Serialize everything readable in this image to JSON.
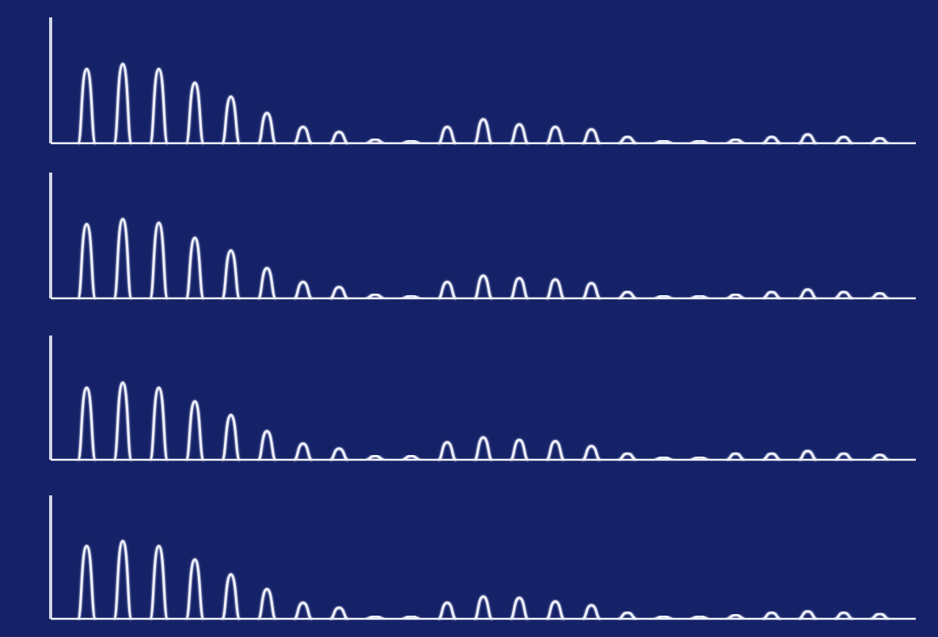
{
  "colors": {
    "background": "#152268",
    "screen_edge": "#0d1648",
    "trace": "#eef0fb",
    "axis": "#f4f5fd"
  },
  "chart_data": [
    {
      "type": "line",
      "xlim": [
        0,
        24
      ],
      "ylim": [
        0,
        100
      ],
      "grid": false,
      "peaks": [
        {
          "x": 1,
          "y": 59
        },
        {
          "x": 2,
          "y": 63
        },
        {
          "x": 3,
          "y": 59
        },
        {
          "x": 4,
          "y": 48
        },
        {
          "x": 5,
          "y": 37
        },
        {
          "x": 6,
          "y": 24
        },
        {
          "x": 7,
          "y": 13
        },
        {
          "x": 8,
          "y": 9
        },
        {
          "x": 9,
          "y": 3
        },
        {
          "x": 10,
          "y": 2
        },
        {
          "x": 11,
          "y": 13
        },
        {
          "x": 12,
          "y": 19
        },
        {
          "x": 13,
          "y": 15
        },
        {
          "x": 14,
          "y": 13
        },
        {
          "x": 15,
          "y": 11
        },
        {
          "x": 16,
          "y": 5
        },
        {
          "x": 17,
          "y": 2
        },
        {
          "x": 18,
          "y": 2
        },
        {
          "x": 19,
          "y": 3
        },
        {
          "x": 20,
          "y": 5
        },
        {
          "x": 21,
          "y": 7
        },
        {
          "x": 22,
          "y": 5
        },
        {
          "x": 23,
          "y": 4
        }
      ]
    },
    {
      "type": "line",
      "xlim": [
        0,
        24
      ],
      "ylim": [
        0,
        100
      ],
      "grid": false,
      "peaks": [
        {
          "x": 1,
          "y": 59
        },
        {
          "x": 2,
          "y": 63
        },
        {
          "x": 3,
          "y": 60
        },
        {
          "x": 4,
          "y": 48
        },
        {
          "x": 5,
          "y": 38
        },
        {
          "x": 6,
          "y": 24
        },
        {
          "x": 7,
          "y": 13
        },
        {
          "x": 8,
          "y": 9
        },
        {
          "x": 9,
          "y": 3
        },
        {
          "x": 10,
          "y": 2
        },
        {
          "x": 11,
          "y": 13
        },
        {
          "x": 12,
          "y": 18
        },
        {
          "x": 13,
          "y": 16
        },
        {
          "x": 14,
          "y": 15
        },
        {
          "x": 15,
          "y": 12
        },
        {
          "x": 16,
          "y": 5
        },
        {
          "x": 17,
          "y": 2
        },
        {
          "x": 18,
          "y": 2
        },
        {
          "x": 19,
          "y": 3
        },
        {
          "x": 20,
          "y": 5
        },
        {
          "x": 21,
          "y": 7
        },
        {
          "x": 22,
          "y": 5
        },
        {
          "x": 23,
          "y": 4
        }
      ]
    },
    {
      "type": "line",
      "xlim": [
        0,
        24
      ],
      "ylim": [
        0,
        100
      ],
      "grid": false,
      "peaks": [
        {
          "x": 1,
          "y": 58
        },
        {
          "x": 2,
          "y": 62
        },
        {
          "x": 3,
          "y": 58
        },
        {
          "x": 4,
          "y": 47
        },
        {
          "x": 5,
          "y": 36
        },
        {
          "x": 6,
          "y": 23
        },
        {
          "x": 7,
          "y": 13
        },
        {
          "x": 8,
          "y": 9
        },
        {
          "x": 9,
          "y": 3
        },
        {
          "x": 10,
          "y": 3
        },
        {
          "x": 11,
          "y": 14
        },
        {
          "x": 12,
          "y": 18
        },
        {
          "x": 13,
          "y": 16
        },
        {
          "x": 14,
          "y": 15
        },
        {
          "x": 15,
          "y": 11
        },
        {
          "x": 16,
          "y": 5
        },
        {
          "x": 17,
          "y": 2
        },
        {
          "x": 18,
          "y": 2
        },
        {
          "x": 19,
          "y": 5
        },
        {
          "x": 20,
          "y": 5
        },
        {
          "x": 21,
          "y": 7
        },
        {
          "x": 22,
          "y": 5
        },
        {
          "x": 23,
          "y": 4
        }
      ]
    },
    {
      "type": "line",
      "xlim": [
        0,
        24
      ],
      "ylim": [
        0,
        100
      ],
      "grid": false,
      "peaks": [
        {
          "x": 1,
          "y": 59
        },
        {
          "x": 2,
          "y": 63
        },
        {
          "x": 3,
          "y": 59
        },
        {
          "x": 4,
          "y": 48
        },
        {
          "x": 5,
          "y": 36
        },
        {
          "x": 6,
          "y": 24
        },
        {
          "x": 7,
          "y": 13
        },
        {
          "x": 8,
          "y": 9
        },
        {
          "x": 9,
          "y": 2
        },
        {
          "x": 10,
          "y": 2
        },
        {
          "x": 11,
          "y": 13
        },
        {
          "x": 12,
          "y": 18
        },
        {
          "x": 13,
          "y": 17
        },
        {
          "x": 14,
          "y": 14
        },
        {
          "x": 15,
          "y": 11
        },
        {
          "x": 16,
          "y": 5
        },
        {
          "x": 17,
          "y": 2
        },
        {
          "x": 18,
          "y": 2
        },
        {
          "x": 19,
          "y": 3
        },
        {
          "x": 20,
          "y": 5
        },
        {
          "x": 21,
          "y": 6
        },
        {
          "x": 22,
          "y": 5
        },
        {
          "x": 23,
          "y": 4
        }
      ]
    }
  ]
}
